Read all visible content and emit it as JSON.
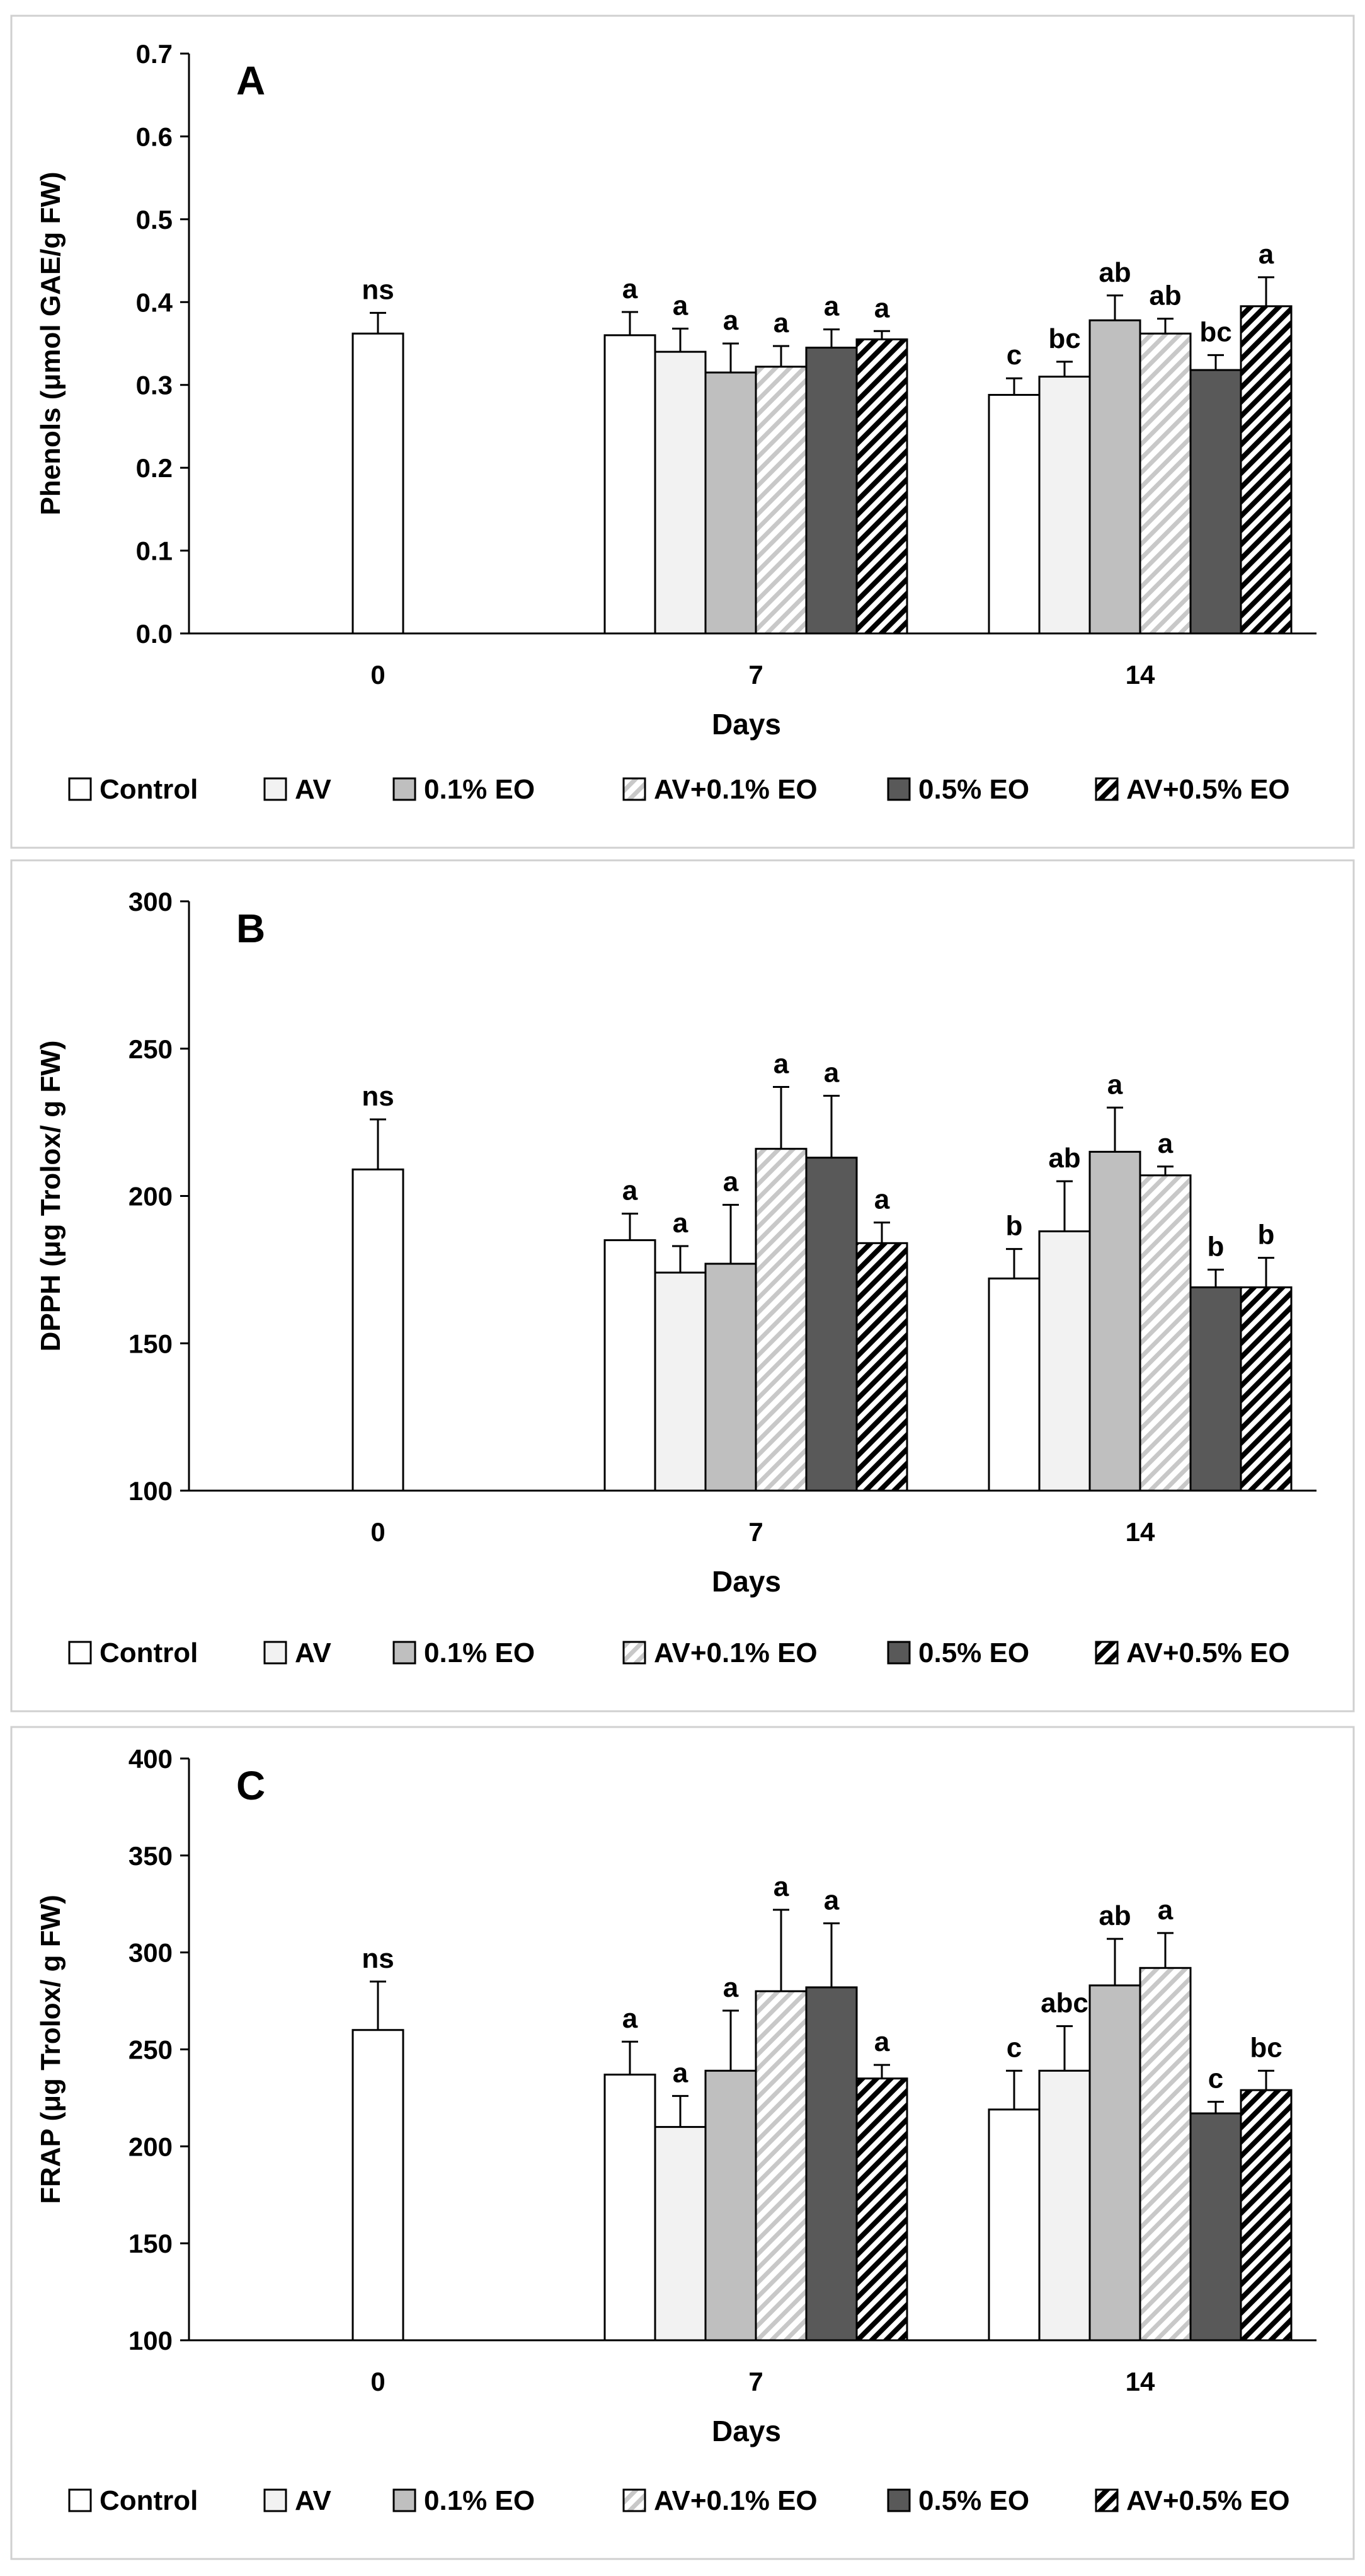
{
  "figure": {
    "legend_labels": [
      "Control",
      "AV",
      "0.1% EO",
      "AV+0.1% EO",
      "0.5% EO",
      "AV+0.5% EO"
    ],
    "series_styles": [
      {
        "name": "Control",
        "fill": "#ffffff",
        "pattern": "none"
      },
      {
        "name": "AV",
        "fill": "#f2f2f2",
        "pattern": "none"
      },
      {
        "name": "0.1% EO",
        "fill": "#bfbfbf",
        "pattern": "none"
      },
      {
        "name": "AV+0.1% EO",
        "fill": "#ffffff",
        "pattern": "light-diagonal",
        "stripe_color": "#bfbfbf"
      },
      {
        "name": "0.5% EO",
        "fill": "#595959",
        "pattern": "none"
      },
      {
        "name": "AV+0.5% EO",
        "fill": "#ffffff",
        "pattern": "dark-diagonal",
        "stripe_color": "#000000"
      }
    ]
  },
  "chart_data": [
    {
      "type": "bar",
      "panel_label": "A",
      "title": "",
      "xlabel": "Days",
      "ylabel": "Phenols (μmol GAE/g FW)",
      "ylim": [
        0.0,
        0.7
      ],
      "yticks": [
        "0.0",
        "0.1",
        "0.2",
        "0.3",
        "0.4",
        "0.5",
        "0.6",
        "0.7"
      ],
      "categories": [
        "0",
        "7",
        "14"
      ],
      "series": [
        {
          "name": "Control",
          "values": [
            0.362,
            0.36,
            0.288
          ],
          "errors": [
            0.025,
            0.028,
            0.02
          ],
          "letters": [
            "ns",
            "a",
            "c"
          ]
        },
        {
          "name": "AV",
          "values": [
            null,
            0.34,
            0.31
          ],
          "errors": [
            null,
            0.028,
            0.018
          ],
          "letters": [
            null,
            "a",
            "bc"
          ]
        },
        {
          "name": "0.1% EO",
          "values": [
            null,
            0.315,
            0.378
          ],
          "errors": [
            null,
            0.035,
            0.03
          ],
          "letters": [
            null,
            "a",
            "ab"
          ]
        },
        {
          "name": "AV+0.1% EO",
          "values": [
            null,
            0.322,
            0.362
          ],
          "errors": [
            null,
            0.025,
            0.018
          ],
          "letters": [
            null,
            "a",
            "ab"
          ]
        },
        {
          "name": "0.5% EO",
          "values": [
            null,
            0.345,
            0.318
          ],
          "errors": [
            null,
            0.022,
            0.018
          ],
          "letters": [
            null,
            "a",
            "bc"
          ]
        },
        {
          "name": "AV+0.5% EO",
          "values": [
            null,
            0.355,
            0.395
          ],
          "errors": [
            null,
            0.01,
            0.035
          ],
          "letters": [
            null,
            "a",
            "a"
          ]
        }
      ],
      "legend_position": "bottom"
    },
    {
      "type": "bar",
      "panel_label": "B",
      "title": "",
      "xlabel": "Days",
      "ylabel": "DPPH (μg Trolox/ g FW)",
      "ylim": [
        100,
        300
      ],
      "yticks": [
        "100",
        "150",
        "200",
        "250",
        "300"
      ],
      "categories": [
        "0",
        "7",
        "14"
      ],
      "series": [
        {
          "name": "Control",
          "values": [
            209,
            185,
            172
          ],
          "errors": [
            17,
            9,
            10
          ],
          "letters": [
            "ns",
            "a",
            "b"
          ]
        },
        {
          "name": "AV",
          "values": [
            null,
            174,
            188
          ],
          "errors": [
            null,
            9,
            17
          ],
          "letters": [
            null,
            "a",
            "ab"
          ]
        },
        {
          "name": "0.1% EO",
          "values": [
            null,
            177,
            215
          ],
          "errors": [
            null,
            20,
            15
          ],
          "letters": [
            null,
            "a",
            "a"
          ]
        },
        {
          "name": "AV+0.1% EO",
          "values": [
            null,
            216,
            207
          ],
          "errors": [
            null,
            21,
            3
          ],
          "letters": [
            null,
            "a",
            "a"
          ]
        },
        {
          "name": "0.5% EO",
          "values": [
            null,
            213,
            169
          ],
          "errors": [
            null,
            21,
            6
          ],
          "letters": [
            null,
            "a",
            "b"
          ]
        },
        {
          "name": "AV+0.5% EO",
          "values": [
            null,
            184,
            169
          ],
          "errors": [
            null,
            7,
            10
          ],
          "letters": [
            null,
            "a",
            "b"
          ]
        }
      ],
      "legend_position": "bottom"
    },
    {
      "type": "bar",
      "panel_label": "C",
      "title": "",
      "xlabel": "Days",
      "ylabel": "FRAP (μg Trolox/ g FW)",
      "ylim": [
        100,
        400
      ],
      "yticks": [
        "100",
        "150",
        "200",
        "250",
        "300",
        "350",
        "400"
      ],
      "categories": [
        "0",
        "7",
        "14"
      ],
      "series": [
        {
          "name": "Control",
          "values": [
            260,
            237,
            219
          ],
          "errors": [
            25,
            17,
            20
          ],
          "letters": [
            "ns",
            "a",
            "c"
          ]
        },
        {
          "name": "AV",
          "values": [
            null,
            210,
            239
          ],
          "errors": [
            null,
            16,
            23
          ],
          "letters": [
            null,
            "a",
            "abc"
          ]
        },
        {
          "name": "0.1% EO",
          "values": [
            null,
            239,
            283
          ],
          "errors": [
            null,
            31,
            24
          ],
          "letters": [
            null,
            "a",
            "ab"
          ]
        },
        {
          "name": "AV+0.1% EO",
          "values": [
            null,
            280,
            292
          ],
          "errors": [
            null,
            42,
            18
          ],
          "letters": [
            null,
            "a",
            "a"
          ]
        },
        {
          "name": "0.5% EO",
          "values": [
            null,
            282,
            217
          ],
          "errors": [
            null,
            33,
            6
          ],
          "letters": [
            null,
            "a",
            "c"
          ]
        },
        {
          "name": "AV+0.5% EO",
          "values": [
            null,
            235,
            229
          ],
          "errors": [
            null,
            7,
            10
          ],
          "letters": [
            null,
            "a",
            "bc"
          ]
        }
      ],
      "legend_position": "bottom"
    }
  ]
}
